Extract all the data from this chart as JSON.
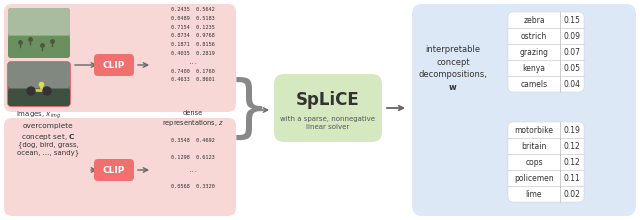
{
  "bg_color": "#ffffff",
  "pink_bg": "#f8d7d7",
  "green_bg": "#d6e8c0",
  "blue_bg": "#dce8f5",
  "clip_color": "#f07070",
  "splice_title": "SpLiCE",
  "splice_subtitle": "with a sparse, nonnegative\nlinear solver",
  "output_label": "interpretable\nconcept\ndecompositions,\n$\\mathbf{w}$",
  "images_label": "images, $x_{img}$",
  "concept_text_line1": "overcomplete",
  "concept_text_line2": "concept set, $\\mathbf{C}$",
  "concept_text_line3": "{dog, bird, grass,",
  "concept_text_line4": "ocean, ..., sandy}",
  "dense_label_line1": "dense",
  "dense_label_line2": "representations, $z$",
  "dense_vals": [
    "0.2435  0.5642",
    "0.0489  0.5183",
    "0.7154  0.1235",
    "0.8734  0.9768",
    "0.1871  0.8156",
    "0.4035  0.2819",
    "...",
    "0.7400  0.1760",
    "0.4633  0.8601"
  ],
  "concept_vals": [
    "0.3548  0.4692",
    "0.1298  0.6123",
    "...",
    "0.0568  0.3320"
  ],
  "table1_rows": [
    [
      "zebra",
      "0.15"
    ],
    [
      "ostrich",
      "0.09"
    ],
    [
      "grazing",
      "0.07"
    ],
    [
      "kenya",
      "0.05"
    ],
    [
      "camels",
      "0.04"
    ]
  ],
  "table2_rows": [
    [
      "motorbike",
      "0.19"
    ],
    [
      "britain",
      "0.12"
    ],
    [
      "cops",
      "0.12"
    ],
    [
      "policemen",
      "0.11"
    ],
    [
      "lime",
      "0.02"
    ]
  ],
  "arrow_color": "#666666",
  "img_top_colors": [
    "#7a9e7a",
    "#8aae8a",
    "#6a8e6a",
    "#a0b890",
    "#b0c8a0"
  ],
  "img_bot_colors": [
    "#607060",
    "#708070",
    "#556055",
    "#7a8a7a",
    "#404840"
  ]
}
